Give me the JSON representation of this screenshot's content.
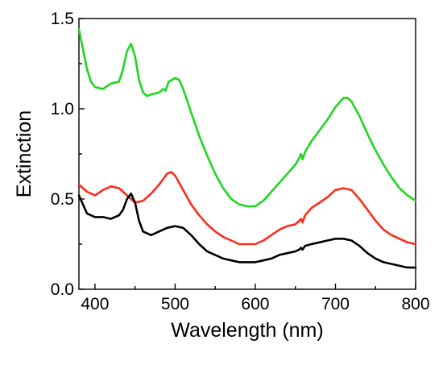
{
  "chart_data": {
    "type": "line",
    "title": "",
    "xlabel": "Wavelength (nm)",
    "ylabel": "Extinction",
    "xlim": [
      380,
      800
    ],
    "ylim": [
      0.0,
      1.5
    ],
    "x_ticks": [
      400,
      500,
      600,
      700,
      800
    ],
    "x_tick_labels": [
      "400",
      "500",
      "600",
      "700",
      "800"
    ],
    "y_ticks": [
      0.0,
      0.5,
      1.0,
      1.5
    ],
    "y_tick_labels": [
      "0.0",
      "0.5",
      "1.0",
      "1.5"
    ],
    "grid": false,
    "legend": "none",
    "series": [
      {
        "color": "#1fd61f",
        "points": [
          [
            380,
            1.44
          ],
          [
            385,
            1.33
          ],
          [
            390,
            1.22
          ],
          [
            395,
            1.15
          ],
          [
            400,
            1.12
          ],
          [
            410,
            1.11
          ],
          [
            420,
            1.14
          ],
          [
            430,
            1.15
          ],
          [
            435,
            1.22
          ],
          [
            440,
            1.32
          ],
          [
            445,
            1.36
          ],
          [
            450,
            1.29
          ],
          [
            455,
            1.16
          ],
          [
            460,
            1.09
          ],
          [
            465,
            1.07
          ],
          [
            470,
            1.08
          ],
          [
            480,
            1.09
          ],
          [
            485,
            1.11
          ],
          [
            488,
            1.1
          ],
          [
            492,
            1.15
          ],
          [
            500,
            1.17
          ],
          [
            505,
            1.16
          ],
          [
            510,
            1.11
          ],
          [
            520,
            0.98
          ],
          [
            530,
            0.85
          ],
          [
            540,
            0.74
          ],
          [
            550,
            0.64
          ],
          [
            560,
            0.56
          ],
          [
            570,
            0.5
          ],
          [
            580,
            0.47
          ],
          [
            590,
            0.46
          ],
          [
            600,
            0.46
          ],
          [
            610,
            0.49
          ],
          [
            620,
            0.54
          ],
          [
            630,
            0.59
          ],
          [
            640,
            0.64
          ],
          [
            650,
            0.69
          ],
          [
            655,
            0.73
          ],
          [
            657,
            0.75
          ],
          [
            659,
            0.72
          ],
          [
            662,
            0.76
          ],
          [
            670,
            0.82
          ],
          [
            680,
            0.88
          ],
          [
            690,
            0.94
          ],
          [
            700,
            1.01
          ],
          [
            710,
            1.06
          ],
          [
            715,
            1.06
          ],
          [
            720,
            1.04
          ],
          [
            730,
            0.96
          ],
          [
            740,
            0.86
          ],
          [
            750,
            0.77
          ],
          [
            760,
            0.69
          ],
          [
            770,
            0.62
          ],
          [
            780,
            0.56
          ],
          [
            790,
            0.52
          ],
          [
            800,
            0.49
          ]
        ]
      },
      {
        "color": "#ff2a1a",
        "points": [
          [
            380,
            0.58
          ],
          [
            390,
            0.54
          ],
          [
            400,
            0.52
          ],
          [
            410,
            0.55
          ],
          [
            420,
            0.57
          ],
          [
            430,
            0.56
          ],
          [
            440,
            0.52
          ],
          [
            450,
            0.48
          ],
          [
            460,
            0.49
          ],
          [
            470,
            0.53
          ],
          [
            480,
            0.58
          ],
          [
            490,
            0.64
          ],
          [
            495,
            0.65
          ],
          [
            500,
            0.63
          ],
          [
            510,
            0.55
          ],
          [
            520,
            0.47
          ],
          [
            530,
            0.41
          ],
          [
            540,
            0.36
          ],
          [
            550,
            0.32
          ],
          [
            560,
            0.29
          ],
          [
            570,
            0.27
          ],
          [
            580,
            0.25
          ],
          [
            590,
            0.25
          ],
          [
            600,
            0.25
          ],
          [
            610,
            0.27
          ],
          [
            620,
            0.3
          ],
          [
            630,
            0.33
          ],
          [
            640,
            0.35
          ],
          [
            650,
            0.36
          ],
          [
            655,
            0.38
          ],
          [
            657,
            0.39
          ],
          [
            659,
            0.37
          ],
          [
            662,
            0.41
          ],
          [
            670,
            0.45
          ],
          [
            680,
            0.48
          ],
          [
            690,
            0.51
          ],
          [
            700,
            0.55
          ],
          [
            710,
            0.56
          ],
          [
            720,
            0.55
          ],
          [
            730,
            0.5
          ],
          [
            740,
            0.44
          ],
          [
            750,
            0.38
          ],
          [
            760,
            0.33
          ],
          [
            770,
            0.3
          ],
          [
            780,
            0.28
          ],
          [
            790,
            0.26
          ],
          [
            800,
            0.25
          ]
        ]
      },
      {
        "color": "#000000",
        "points": [
          [
            380,
            0.52
          ],
          [
            385,
            0.47
          ],
          [
            390,
            0.42
          ],
          [
            400,
            0.4
          ],
          [
            410,
            0.4
          ],
          [
            420,
            0.39
          ],
          [
            430,
            0.41
          ],
          [
            435,
            0.44
          ],
          [
            440,
            0.5
          ],
          [
            445,
            0.53
          ],
          [
            450,
            0.48
          ],
          [
            455,
            0.38
          ],
          [
            460,
            0.32
          ],
          [
            470,
            0.3
          ],
          [
            480,
            0.32
          ],
          [
            490,
            0.34
          ],
          [
            500,
            0.35
          ],
          [
            510,
            0.34
          ],
          [
            520,
            0.3
          ],
          [
            530,
            0.25
          ],
          [
            540,
            0.21
          ],
          [
            550,
            0.19
          ],
          [
            560,
            0.17
          ],
          [
            570,
            0.16
          ],
          [
            580,
            0.15
          ],
          [
            590,
            0.15
          ],
          [
            600,
            0.15
          ],
          [
            610,
            0.16
          ],
          [
            620,
            0.17
          ],
          [
            630,
            0.19
          ],
          [
            640,
            0.2
          ],
          [
            650,
            0.21
          ],
          [
            655,
            0.22
          ],
          [
            657,
            0.23
          ],
          [
            659,
            0.22
          ],
          [
            662,
            0.24
          ],
          [
            670,
            0.25
          ],
          [
            680,
            0.26
          ],
          [
            690,
            0.27
          ],
          [
            700,
            0.28
          ],
          [
            710,
            0.28
          ],
          [
            720,
            0.27
          ],
          [
            730,
            0.24
          ],
          [
            740,
            0.2
          ],
          [
            750,
            0.17
          ],
          [
            760,
            0.15
          ],
          [
            770,
            0.14
          ],
          [
            780,
            0.13
          ],
          [
            790,
            0.12
          ],
          [
            800,
            0.12
          ]
        ]
      }
    ]
  }
}
